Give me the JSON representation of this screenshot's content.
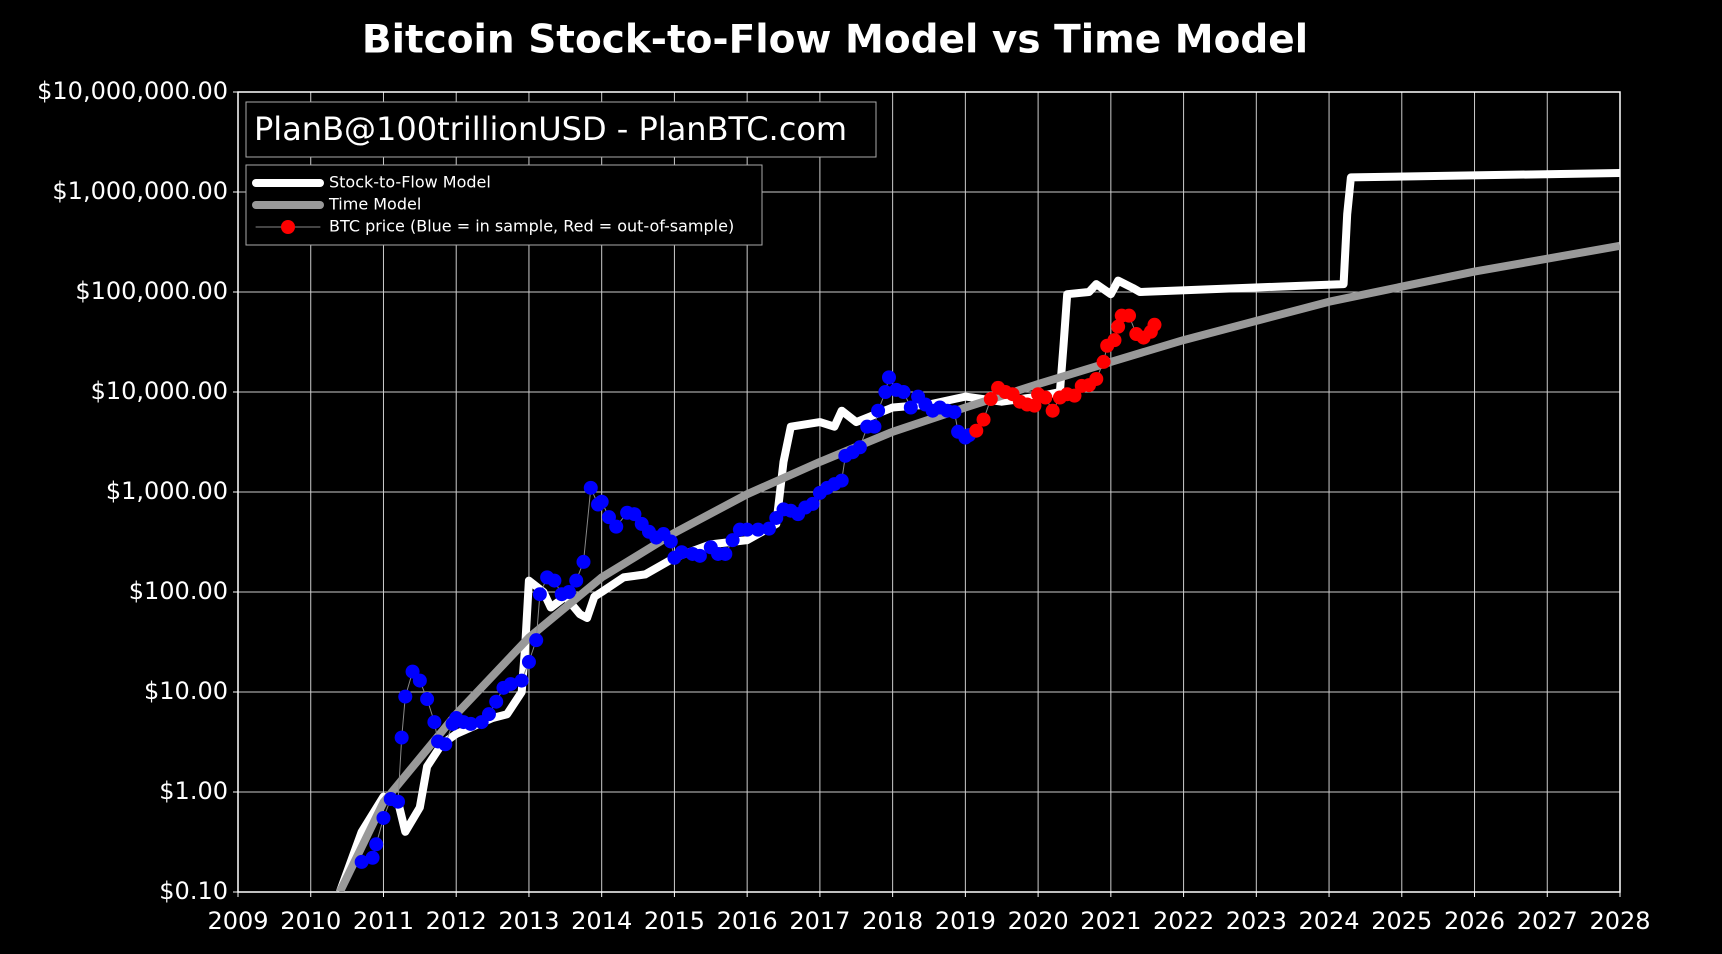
{
  "chart_data": {
    "type": "line",
    "title": "Bitcoin Stock-to-Flow Model vs Time Model",
    "annotation": "PlanB@100trillionUSD - PlanBTC.com",
    "log_y": true,
    "grid": true,
    "legend": "upper left",
    "xlim": [
      2009,
      2028
    ],
    "xticks": [
      2009,
      2010,
      2011,
      2012,
      2013,
      2014,
      2015,
      2016,
      2017,
      2018,
      2019,
      2020,
      2021,
      2022,
      2023,
      2024,
      2025,
      2026,
      2027,
      2028
    ],
    "ylim": [
      0.1,
      10000000
    ],
    "yticks": [
      {
        "value": 0.1,
        "label": "$0.10"
      },
      {
        "value": 1,
        "label": "$1.00"
      },
      {
        "value": 10,
        "label": "$10.00"
      },
      {
        "value": 100,
        "label": "$100.00"
      },
      {
        "value": 1000,
        "label": "$1,000.00"
      },
      {
        "value": 10000,
        "label": "$10,000.00"
      },
      {
        "value": 100000,
        "label": "$100,000.00"
      },
      {
        "value": 1000000,
        "label": "$1,000,000.00"
      },
      {
        "value": 10000000,
        "label": "$10,000,000.00"
      }
    ],
    "series": [
      {
        "name": "Stock-to-Flow Model",
        "color": "#ffffff",
        "line_width": 8,
        "marker": false,
        "x": [
          2010.4,
          2010.7,
          2011.0,
          2011.2,
          2011.3,
          2011.5,
          2011.6,
          2011.8,
          2012.0,
          2012.5,
          2012.7,
          2012.9,
          2012.95,
          2013.0,
          2013.2,
          2013.3,
          2013.5,
          2013.7,
          2013.8,
          2013.9,
          2014.0,
          2014.3,
          2014.6,
          2015.0,
          2015.5,
          2016.0,
          2016.4,
          2016.5,
          2016.6,
          2017.0,
          2017.2,
          2017.3,
          2017.5,
          2018.0,
          2018.5,
          2019.0,
          2019.5,
          2020.0,
          2020.3,
          2020.35,
          2020.4,
          2020.7,
          2020.8,
          2021.0,
          2021.1,
          2021.3,
          2021.4,
          2024.2,
          2024.25,
          2024.3,
          2028.0
        ],
        "values": [
          0.1,
          0.4,
          0.9,
          0.8,
          0.4,
          0.7,
          1.8,
          3,
          3.8,
          5.5,
          6,
          10,
          30,
          130,
          100,
          70,
          90,
          60,
          55,
          90,
          100,
          140,
          150,
          220,
          300,
          330,
          480,
          2000,
          4500,
          5000,
          4500,
          6500,
          5000,
          7000,
          7500,
          9000,
          8000,
          9000,
          10000,
          30000,
          95000,
          100000,
          120000,
          95000,
          130000,
          110000,
          100000,
          120000,
          600000,
          1400000,
          1550000
        ]
      },
      {
        "name": "Time Model",
        "color": "#999999",
        "line_width": 8,
        "marker": false,
        "x": [
          2010.4,
          2011.0,
          2012.0,
          2013.0,
          2014.0,
          2015.0,
          2016.0,
          2017.0,
          2018.0,
          2019.0,
          2020.0,
          2021.0,
          2022.0,
          2024.0,
          2026.0,
          2028.0
        ],
        "values": [
          0.1,
          0.79,
          6,
          35,
          140,
          390,
          950,
          2000,
          4000,
          7000,
          12000,
          20000,
          33000,
          80000,
          160000,
          290000
        ]
      },
      {
        "color": "#0000ff",
        "line_width": 1,
        "marker": true,
        "x": [
          2010.7,
          2010.85,
          2010.9,
          2011.0,
          2011.1,
          2011.2,
          2011.25,
          2011.3,
          2011.4,
          2011.5,
          2011.6,
          2011.7,
          2011.75,
          2011.85,
          2011.95,
          2012.0,
          2012.1,
          2012.2,
          2012.35,
          2012.45,
          2012.55,
          2012.65,
          2012.75,
          2012.9,
          2013.0,
          2013.1,
          2013.15,
          2013.25,
          2013.35,
          2013.45,
          2013.55,
          2013.65,
          2013.75,
          2013.85,
          2013.95,
          2014.0,
          2014.1,
          2014.2,
          2014.35,
          2014.45,
          2014.55,
          2014.65,
          2014.75,
          2014.85,
          2014.95,
          2015.0,
          2015.1,
          2015.25,
          2015.35,
          2015.5,
          2015.6,
          2015.7,
          2015.8,
          2015.9,
          2016.0,
          2016.15,
          2016.3,
          2016.4,
          2016.5,
          2016.6,
          2016.7,
          2016.8,
          2016.9,
          2017.0,
          2017.1,
          2017.2,
          2017.3,
          2017.35,
          2017.45,
          2017.55,
          2017.65,
          2017.75,
          2017.8,
          2017.9,
          2017.95,
          2018.05,
          2018.15,
          2018.25,
          2018.35,
          2018.45,
          2018.55,
          2018.65,
          2018.75,
          2018.85,
          2018.9,
          2019.0,
          2019.05
        ],
        "values": [
          0.2,
          0.22,
          0.3,
          0.55,
          0.85,
          0.8,
          3.5,
          9,
          16,
          13,
          8.5,
          5,
          3.2,
          3,
          4.8,
          5.5,
          5,
          4.8,
          5,
          6,
          8,
          11,
          12,
          13,
          20,
          33,
          95,
          140,
          130,
          95,
          100,
          130,
          200,
          1100,
          750,
          800,
          560,
          450,
          620,
          600,
          480,
          400,
          350,
          380,
          320,
          220,
          250,
          240,
          230,
          280,
          240,
          240,
          330,
          420,
          420,
          420,
          430,
          550,
          670,
          650,
          600,
          700,
          760,
          980,
          1100,
          1200,
          1300,
          2300,
          2500,
          2800,
          4500,
          4500,
          6500,
          10000,
          14000,
          10500,
          10000,
          7000,
          9000,
          7500,
          6500,
          7000,
          6500,
          6300,
          4000,
          3500,
          3700
        ]
      },
      {
        "name": "BTC price (Blue = in sample, Red = out-of-sample)",
        "color": "#ff0000",
        "line_width": 1,
        "marker": true,
        "x": [
          2019.15,
          2019.25,
          2019.35,
          2019.45,
          2019.55,
          2019.65,
          2019.75,
          2019.85,
          2019.95,
          2020.0,
          2020.1,
          2020.2,
          2020.3,
          2020.4,
          2020.5,
          2020.6,
          2020.7,
          2020.8,
          2020.9,
          2020.95,
          2021.05,
          2021.1,
          2021.15,
          2021.25,
          2021.35,
          2021.45,
          2021.55,
          2021.6
        ],
        "values": [
          4100,
          5300,
          8500,
          11000,
          10000,
          9500,
          8000,
          7500,
          7300,
          9500,
          8800,
          6500,
          8800,
          9500,
          9200,
          11500,
          11700,
          13500,
          20000,
          29000,
          33000,
          45000,
          58000,
          58000,
          38000,
          35000,
          40000,
          47000
        ]
      }
    ]
  }
}
